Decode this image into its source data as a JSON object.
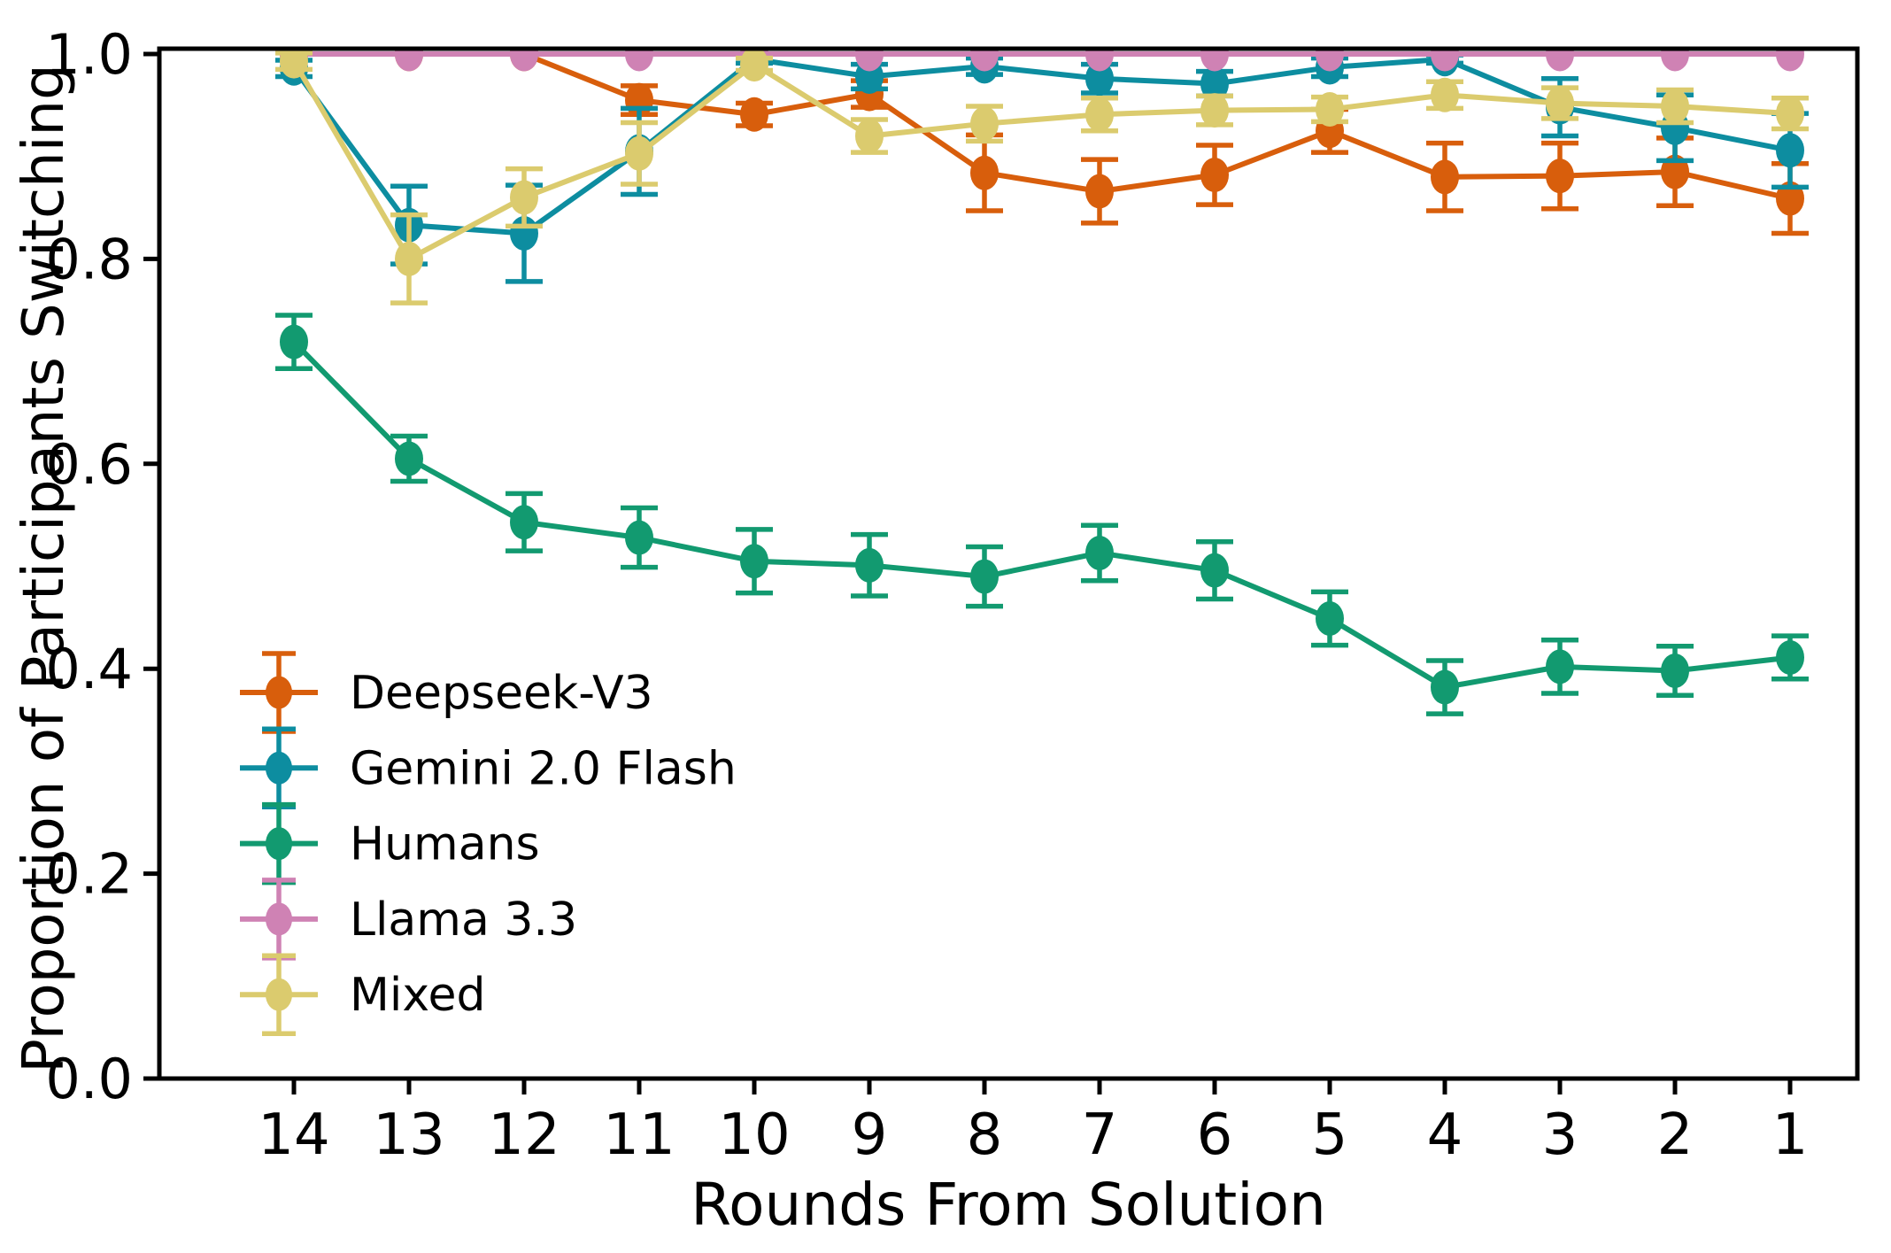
{
  "chart_data": {
    "type": "line",
    "title": "",
    "xlabel": "Rounds From Solution",
    "ylabel": "Proportion of Participants Switching",
    "x_categories": [
      "14",
      "13",
      "12",
      "11",
      "10",
      "9",
      "8",
      "7",
      "6",
      "5",
      "4",
      "3",
      "2",
      "1"
    ],
    "x_reversed": true,
    "y_ticks": [
      "0.0",
      "0.2",
      "0.4",
      "0.6",
      "0.8",
      "1.0"
    ],
    "y_tick_values": [
      0.0,
      0.2,
      0.4,
      0.6,
      0.8,
      1.0
    ],
    "ylim": [
      0.0,
      1.005
    ],
    "grid": false,
    "legend_position": "lower left",
    "axis_color": "#000000",
    "series": [
      {
        "name": "Deepseek-V3",
        "color": "#d85e0c",
        "values": [
          1.0,
          1.0,
          1.0,
          0.955,
          0.941,
          0.961,
          0.884,
          0.866,
          0.882,
          0.925,
          0.88,
          0.881,
          0.885,
          0.859
        ],
        "errors": [
          0.0,
          0.0,
          0.0,
          0.014,
          0.011,
          0.013,
          0.037,
          0.031,
          0.029,
          0.021,
          0.033,
          0.032,
          0.033,
          0.034
        ]
      },
      {
        "name": "Gemini 2.0 Flash",
        "color": "#0d8da0",
        "values": [
          0.986,
          0.833,
          0.825,
          0.905,
          0.995,
          0.978,
          0.988,
          0.976,
          0.971,
          0.987,
          0.995,
          0.948,
          0.928,
          0.906
        ],
        "errors": [
          0.008,
          0.038,
          0.047,
          0.042,
          0.004,
          0.012,
          0.008,
          0.014,
          0.012,
          0.009,
          0.004,
          0.028,
          0.032,
          0.036
        ]
      },
      {
        "name": "Humans",
        "color": "#129a70",
        "values": [
          0.719,
          0.605,
          0.543,
          0.528,
          0.505,
          0.501,
          0.49,
          0.513,
          0.496,
          0.449,
          0.382,
          0.402,
          0.398,
          0.411
        ],
        "errors": [
          0.026,
          0.022,
          0.028,
          0.029,
          0.031,
          0.03,
          0.029,
          0.027,
          0.028,
          0.026,
          0.026,
          0.026,
          0.024,
          0.021
        ]
      },
      {
        "name": "Llama 3.3",
        "color": "#cf82b4",
        "values": [
          1.0,
          1.0,
          1.0,
          1.0,
          1.0,
          1.0,
          1.0,
          1.0,
          1.0,
          1.0,
          1.0,
          1.0,
          1.0,
          1.0
        ],
        "errors": [
          0.0,
          0.0,
          0.0,
          0.0,
          0.0,
          0.0,
          0.0,
          0.0,
          0.0,
          0.0,
          0.0,
          0.0,
          0.0,
          0.0
        ]
      },
      {
        "name": "Mixed",
        "color": "#dbcb6e",
        "values": [
          0.993,
          0.8,
          0.86,
          0.903,
          0.99,
          0.92,
          0.932,
          0.941,
          0.945,
          0.946,
          0.96,
          0.952,
          0.949,
          0.942
        ],
        "errors": [
          0.008,
          0.043,
          0.028,
          0.03,
          0.006,
          0.016,
          0.017,
          0.016,
          0.014,
          0.012,
          0.013,
          0.015,
          0.016,
          0.015
        ]
      }
    ]
  }
}
